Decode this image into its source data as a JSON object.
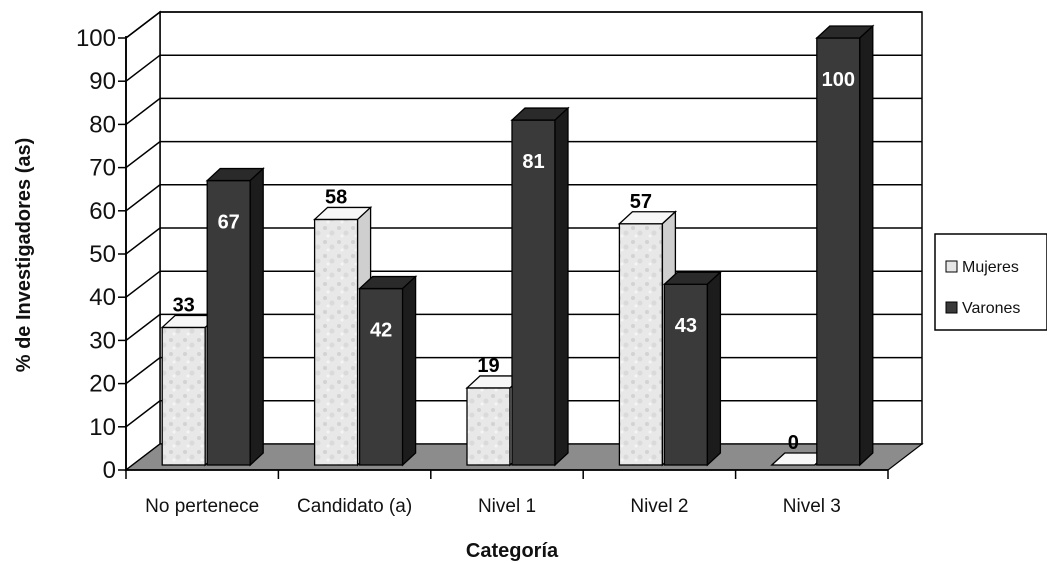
{
  "chart_data": {
    "type": "bar",
    "categories": [
      "No pertenece",
      "Candidato (a)",
      "Nivel 1",
      "Nivel  2",
      "Nivel 3"
    ],
    "series": [
      {
        "name": "Mujeres",
        "values": [
          33,
          58,
          19,
          57,
          0
        ],
        "color": "#e6e6e6"
      },
      {
        "name": "Varones",
        "values": [
          67,
          42,
          81,
          43,
          100
        ],
        "color": "#3a3a3a"
      }
    ],
    "title": "",
    "xlabel": "Categoría",
    "ylabel": "% de Investigadores (as)",
    "ylim": [
      0,
      100
    ],
    "yticks": [
      0,
      10,
      20,
      30,
      40,
      50,
      60,
      70,
      80,
      90,
      100
    ],
    "grid": true,
    "legend_position": "right",
    "style": "3d-clustered-column",
    "value_labels": [
      "33",
      "58",
      "19",
      "57",
      "0",
      "67",
      "42",
      "81",
      "43",
      "100"
    ]
  }
}
